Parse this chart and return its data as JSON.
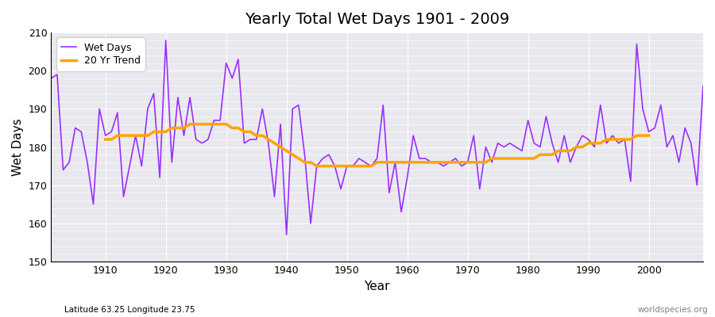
{
  "title": "Yearly Total Wet Days 1901 - 2009",
  "xlabel": "Year",
  "ylabel": "Wet Days",
  "footnote_left": "Latitude 63.25 Longitude 23.75",
  "footnote_right": "worldspecies.org",
  "ylim": [
    150,
    210
  ],
  "xlim": [
    1901,
    2009
  ],
  "line_color": "#9B30FF",
  "trend_color": "#FFA500",
  "bg_color": "#FFFFFF",
  "plot_bg_color": "#E8E8EE",
  "grid_color": "#FFFFFF",
  "years": [
    1901,
    1902,
    1903,
    1904,
    1905,
    1906,
    1907,
    1908,
    1909,
    1910,
    1911,
    1912,
    1913,
    1914,
    1915,
    1916,
    1917,
    1918,
    1919,
    1920,
    1921,
    1922,
    1923,
    1924,
    1925,
    1926,
    1927,
    1928,
    1929,
    1930,
    1931,
    1932,
    1933,
    1934,
    1935,
    1936,
    1937,
    1938,
    1939,
    1940,
    1941,
    1942,
    1943,
    1944,
    1945,
    1946,
    1947,
    1948,
    1949,
    1950,
    1951,
    1952,
    1953,
    1954,
    1955,
    1956,
    1957,
    1958,
    1959,
    1960,
    1961,
    1962,
    1963,
    1964,
    1965,
    1966,
    1967,
    1968,
    1969,
    1970,
    1971,
    1972,
    1973,
    1974,
    1975,
    1976,
    1977,
    1978,
    1979,
    1980,
    1981,
    1982,
    1983,
    1984,
    1985,
    1986,
    1987,
    1988,
    1989,
    1990,
    1991,
    1992,
    1993,
    1994,
    1995,
    1996,
    1997,
    1998,
    1999,
    2000,
    2001,
    2002,
    2003,
    2004,
    2005,
    2006,
    2007,
    2008,
    2009
  ],
  "wet_days": [
    198,
    199,
    174,
    176,
    185,
    184,
    176,
    165,
    190,
    183,
    184,
    189,
    167,
    175,
    183,
    175,
    190,
    194,
    172,
    208,
    176,
    193,
    183,
    193,
    182,
    181,
    182,
    187,
    187,
    202,
    198,
    203,
    181,
    182,
    182,
    190,
    181,
    167,
    186,
    157,
    190,
    191,
    178,
    160,
    175,
    177,
    178,
    175,
    169,
    175,
    175,
    177,
    176,
    175,
    177,
    191,
    168,
    176,
    163,
    172,
    183,
    177,
    177,
    176,
    176,
    175,
    176,
    177,
    175,
    176,
    183,
    169,
    180,
    176,
    181,
    180,
    181,
    180,
    179,
    187,
    181,
    180,
    188,
    181,
    176,
    183,
    176,
    180,
    183,
    182,
    180,
    191,
    181,
    183,
    181,
    182,
    171,
    207,
    190,
    184,
    185,
    191,
    180,
    183,
    176,
    185,
    181,
    170,
    196
  ],
  "trend_years": [
    1910,
    1911,
    1912,
    1913,
    1914,
    1915,
    1916,
    1917,
    1918,
    1919,
    1920,
    1921,
    1922,
    1923,
    1924,
    1925,
    1926,
    1927,
    1928,
    1929,
    1930,
    1931,
    1932,
    1933,
    1934,
    1935,
    1936,
    1937,
    1938,
    1939,
    1940,
    1941,
    1942,
    1943,
    1944,
    1945,
    1946,
    1947,
    1948,
    1949,
    1950,
    1951,
    1952,
    1953,
    1954,
    1955,
    1956,
    1957,
    1958,
    1959,
    1960,
    1961,
    1962,
    1963,
    1964,
    1965,
    1966,
    1967,
    1968,
    1969,
    1970,
    1971,
    1972,
    1973,
    1974,
    1975,
    1976,
    1977,
    1978,
    1979,
    1980,
    1981,
    1982,
    1983,
    1984,
    1985,
    1986,
    1987,
    1988,
    1989,
    1990,
    1991,
    1992,
    1993,
    1994,
    1995,
    1996,
    1997,
    1998,
    1999,
    2000
  ],
  "trend_values": [
    182,
    182,
    183,
    183,
    183,
    183,
    183,
    183,
    184,
    184,
    184,
    185,
    185,
    185,
    186,
    186,
    186,
    186,
    186,
    186,
    186,
    185,
    185,
    184,
    184,
    183,
    183,
    182,
    181,
    180,
    179,
    178,
    177,
    176,
    176,
    175,
    175,
    175,
    175,
    175,
    175,
    175,
    175,
    175,
    175,
    176,
    176,
    176,
    176,
    176,
    176,
    176,
    176,
    176,
    176,
    176,
    176,
    176,
    176,
    176,
    176,
    176,
    176,
    176,
    177,
    177,
    177,
    177,
    177,
    177,
    177,
    177,
    178,
    178,
    178,
    179,
    179,
    179,
    180,
    180,
    181,
    181,
    181,
    182,
    182,
    182,
    182,
    182,
    183,
    183,
    183
  ]
}
